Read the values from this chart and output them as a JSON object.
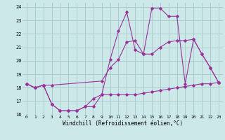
{
  "xlabel": "Windchill (Refroidissement éolien,°C)",
  "background_color": "#cce8e8",
  "grid_color": "#aacccc",
  "line_color": "#993399",
  "xlim": [
    -0.5,
    23.5
  ],
  "ylim": [
    16,
    24.3
  ],
  "yticks": [
    16,
    17,
    18,
    19,
    20,
    21,
    22,
    23,
    24
  ],
  "xticks": [
    0,
    1,
    2,
    3,
    4,
    5,
    6,
    7,
    8,
    9,
    10,
    11,
    12,
    13,
    14,
    15,
    16,
    17,
    18,
    19,
    20,
    21,
    22,
    23
  ],
  "series1": [
    [
      0,
      18.3
    ],
    [
      1,
      18.0
    ],
    [
      2,
      18.2
    ],
    [
      3,
      16.8
    ],
    [
      4,
      16.3
    ],
    [
      5,
      16.3
    ],
    [
      6,
      16.3
    ],
    [
      7,
      16.6
    ],
    [
      8,
      16.6
    ],
    [
      9,
      17.5
    ],
    [
      10,
      17.5
    ],
    [
      11,
      17.5
    ],
    [
      12,
      17.5
    ],
    [
      13,
      17.5
    ],
    [
      14,
      17.6
    ],
    [
      15,
      17.7
    ],
    [
      16,
      17.8
    ],
    [
      17,
      17.9
    ],
    [
      18,
      18.0
    ],
    [
      19,
      18.1
    ],
    [
      20,
      18.2
    ],
    [
      21,
      18.3
    ],
    [
      22,
      18.3
    ],
    [
      23,
      18.4
    ]
  ],
  "series2": [
    [
      0,
      18.3
    ],
    [
      1,
      18.0
    ],
    [
      2,
      18.2
    ],
    [
      3,
      18.2
    ],
    [
      9,
      18.5
    ],
    [
      10,
      19.5
    ],
    [
      11,
      20.1
    ],
    [
      12,
      21.4
    ],
    [
      13,
      21.5
    ],
    [
      14,
      20.5
    ],
    [
      15,
      20.5
    ],
    [
      16,
      21.0
    ],
    [
      17,
      21.4
    ],
    [
      18,
      21.5
    ],
    [
      19,
      21.5
    ],
    [
      20,
      21.6
    ],
    [
      21,
      20.5
    ],
    [
      22,
      19.5
    ],
    [
      23,
      18.4
    ]
  ],
  "series3": [
    [
      0,
      18.3
    ],
    [
      1,
      18.0
    ],
    [
      2,
      18.2
    ],
    [
      3,
      16.8
    ],
    [
      4,
      16.3
    ],
    [
      5,
      16.3
    ],
    [
      6,
      16.3
    ],
    [
      7,
      16.6
    ],
    [
      8,
      17.2
    ],
    [
      9,
      17.5
    ],
    [
      10,
      20.1
    ],
    [
      11,
      22.2
    ],
    [
      12,
      23.6
    ],
    [
      13,
      20.8
    ],
    [
      14,
      20.5
    ],
    [
      15,
      23.9
    ],
    [
      16,
      23.9
    ],
    [
      17,
      23.3
    ],
    [
      18,
      23.3
    ],
    [
      19,
      18.3
    ],
    [
      20,
      21.6
    ],
    [
      21,
      20.5
    ],
    [
      22,
      19.5
    ],
    [
      23,
      18.4
    ]
  ]
}
